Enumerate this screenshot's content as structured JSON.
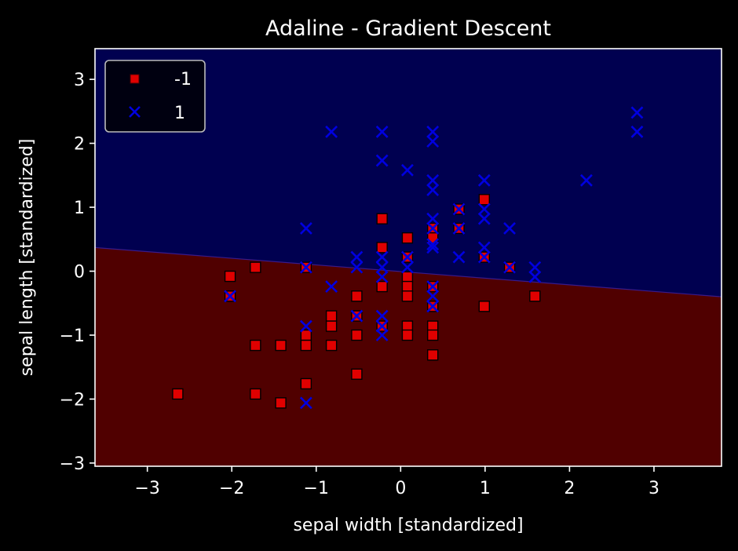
{
  "chart_data": {
    "type": "scatter",
    "title": "Adaline - Gradient Descent",
    "xlabel": "sepal width [standardized]",
    "ylabel": "sepal length [standardized]",
    "xlim": [
      -3.62,
      3.8
    ],
    "ylim": [
      -3.05,
      3.48
    ],
    "x_ticks": [
      -3,
      -2,
      -1,
      0,
      1,
      2,
      3
    ],
    "y_ticks": [
      -3,
      -2,
      -1,
      0,
      1,
      2,
      3
    ],
    "x_tick_labels": [
      "−3",
      "−2",
      "−1",
      "0",
      "1",
      "2",
      "3"
    ],
    "y_tick_labels": [
      "−3",
      "−2",
      "−1",
      "0",
      "1",
      "2",
      "3"
    ],
    "grid": false,
    "legend_position": "top-left",
    "decision_boundary": {
      "x": [
        -3.62,
        3.8
      ],
      "y": [
        0.37,
        -0.4
      ],
      "region_above_color": "#000050",
      "region_below_color": "#500000"
    },
    "series": [
      {
        "name": "-1",
        "marker": "square",
        "color": "#e00000",
        "points": [
          [
            -2.64,
            -1.92
          ],
          [
            -2.02,
            -0.08
          ],
          [
            -2.02,
            -0.39
          ],
          [
            -1.72,
            0.06
          ],
          [
            -1.72,
            -1.16
          ],
          [
            -1.72,
            -1.92
          ],
          [
            -1.42,
            -1.16
          ],
          [
            -1.42,
            -2.06
          ],
          [
            -1.12,
            0.06
          ],
          [
            -1.12,
            -1.0
          ],
          [
            -1.12,
            -1.16
          ],
          [
            -1.12,
            -1.76
          ],
          [
            -0.82,
            -0.7
          ],
          [
            -0.82,
            -0.86
          ],
          [
            -0.82,
            -1.16
          ],
          [
            -0.52,
            -0.39
          ],
          [
            -0.52,
            -0.7
          ],
          [
            -0.52,
            -1.0
          ],
          [
            -0.52,
            -1.61
          ],
          [
            -0.22,
            0.82
          ],
          [
            -0.22,
            0.37
          ],
          [
            -0.22,
            -0.24
          ],
          [
            -0.22,
            -0.86
          ],
          [
            0.08,
            0.52
          ],
          [
            0.08,
            0.22
          ],
          [
            0.08,
            -0.09
          ],
          [
            0.08,
            -0.24
          ],
          [
            0.08,
            -0.39
          ],
          [
            0.08,
            -0.86
          ],
          [
            0.08,
            -1.0
          ],
          [
            0.38,
            0.67
          ],
          [
            0.38,
            0.52
          ],
          [
            0.38,
            -0.24
          ],
          [
            0.38,
            -0.55
          ],
          [
            0.38,
            -0.86
          ],
          [
            0.38,
            -1.0
          ],
          [
            0.38,
            -1.31
          ],
          [
            0.69,
            0.97
          ],
          [
            0.69,
            0.67
          ],
          [
            0.99,
            1.12
          ],
          [
            0.99,
            0.22
          ],
          [
            0.99,
            -0.55
          ],
          [
            1.29,
            0.06
          ],
          [
            1.59,
            -0.39
          ]
        ]
      },
      {
        "name": "1",
        "marker": "x",
        "color": "#0000e0",
        "points": [
          [
            -2.02,
            -0.39
          ],
          [
            -1.12,
            0.67
          ],
          [
            -1.12,
            0.06
          ],
          [
            -1.12,
            -0.86
          ],
          [
            -1.12,
            -2.06
          ],
          [
            -0.82,
            2.18
          ],
          [
            -0.82,
            -0.24
          ],
          [
            -0.52,
            0.22
          ],
          [
            -0.52,
            0.06
          ],
          [
            -0.52,
            -0.7
          ],
          [
            -0.22,
            2.18
          ],
          [
            -0.22,
            1.73
          ],
          [
            -0.22,
            0.22
          ],
          [
            -0.22,
            0.06
          ],
          [
            -0.22,
            -0.09
          ],
          [
            -0.22,
            -0.7
          ],
          [
            -0.22,
            -0.86
          ],
          [
            -0.22,
            -1.0
          ],
          [
            0.08,
            1.58
          ],
          [
            0.08,
            0.22
          ],
          [
            0.08,
            0.06
          ],
          [
            0.38,
            2.18
          ],
          [
            0.38,
            2.03
          ],
          [
            0.38,
            1.42
          ],
          [
            0.38,
            1.27
          ],
          [
            0.38,
            0.82
          ],
          [
            0.38,
            0.67
          ],
          [
            0.38,
            0.42
          ],
          [
            0.38,
            0.37
          ],
          [
            0.38,
            -0.24
          ],
          [
            0.38,
            -0.39
          ],
          [
            0.38,
            -0.55
          ],
          [
            0.69,
            0.97
          ],
          [
            0.69,
            0.67
          ],
          [
            0.69,
            0.22
          ],
          [
            0.99,
            1.42
          ],
          [
            0.99,
            0.97
          ],
          [
            0.99,
            0.82
          ],
          [
            0.99,
            0.37
          ],
          [
            0.99,
            0.22
          ],
          [
            1.29,
            0.67
          ],
          [
            1.29,
            0.06
          ],
          [
            1.59,
            0.06
          ],
          [
            1.59,
            -0.09
          ],
          [
            2.2,
            1.42
          ],
          [
            2.8,
            2.48
          ],
          [
            2.8,
            2.18
          ]
        ]
      }
    ]
  }
}
